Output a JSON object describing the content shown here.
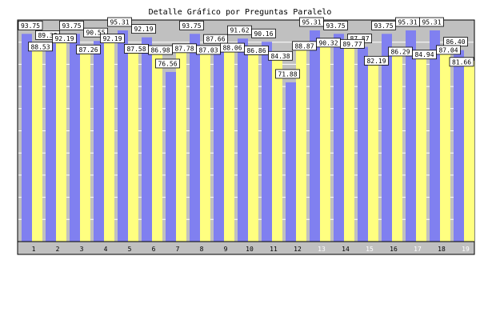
{
  "chart_data": {
    "type": "bar",
    "title": "Detalle Gráfico por Preguntas Paralelo",
    "xlabel": "",
    "ylabel": "",
    "ylim": [
      0,
      100
    ],
    "yticks": [
      10,
      20,
      30,
      40,
      50,
      60,
      70,
      80,
      90
    ],
    "grid": true,
    "legend": "none",
    "categories": [
      "1",
      "2",
      "3",
      "4",
      "5",
      "6",
      "7",
      "8",
      "9",
      "10",
      "11",
      "12",
      "13",
      "14",
      "15",
      "16",
      "17",
      "18",
      "19"
    ],
    "series": [
      {
        "color": "#8080f0",
        "values": [
          93.75,
          89.38,
          93.75,
          90.55,
          95.31,
          92.19,
          76.56,
          93.75,
          87.66,
          91.62,
          90.16,
          71.88,
          95.31,
          93.75,
          87.87,
          93.75,
          95.31,
          95.31,
          86.4
        ]
      },
      {
        "color": "#ffff80",
        "values": [
          88.53,
          92.19,
          87.26,
          92.19,
          87.58,
          86.98,
          87.78,
          87.03,
          88.06,
          86.86,
          84.38,
          88.87,
          90.32,
          89.77,
          82.19,
          86.29,
          84.94,
          87.04,
          81.66
        ]
      }
    ],
    "colors": {
      "plot_background": "#c0c0c0",
      "grid": "#ffffff",
      "label_box": "#ffffff",
      "tick_light": "#ffffff",
      "tick_dark": "#000000"
    }
  }
}
